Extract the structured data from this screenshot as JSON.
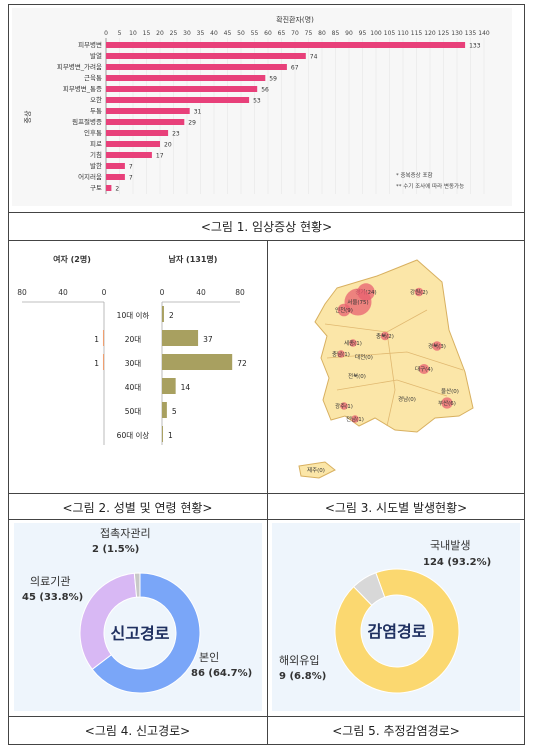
{
  "captions": {
    "fig1": "<그림 1. 임상증상 현황>",
    "fig2": "<그림 2. 성별 및 연령 현황>",
    "fig3": "<그림 3. 시도별 발생현황>",
    "fig4": "<그림 4. 신고경로>",
    "fig5": "<그림 5. 추정감염경로>"
  },
  "chart_data": [
    {
      "type": "bar",
      "orientation": "horizontal",
      "title": "확진환자(명)",
      "ylabel": "증상",
      "categories": [
        "피부병변",
        "발열",
        "피부병변_가려움",
        "근육통",
        "피부병변_통증",
        "오한",
        "두통",
        "림프절병증",
        "인후통",
        "피로",
        "기침",
        "발한",
        "어지러움",
        "구토"
      ],
      "values": [
        133,
        74,
        67,
        59,
        56,
        53,
        31,
        29,
        23,
        20,
        17,
        7,
        7,
        2
      ],
      "xlim": [
        0,
        140
      ],
      "xticks": [
        0,
        5,
        10,
        15,
        20,
        25,
        30,
        35,
        40,
        45,
        50,
        55,
        60,
        65,
        70,
        75,
        80,
        85,
        90,
        95,
        100,
        105,
        110,
        115,
        120,
        125,
        130,
        135,
        140
      ],
      "bar_color": "#e8407a",
      "notes": [
        "* 중복증상 포함",
        "** 수기 조사에 따라 변동가능"
      ]
    },
    {
      "type": "bar",
      "orientation": "horizontal",
      "title": "성별 및 연령 현황",
      "categories": [
        "10대 이하",
        "20대",
        "30대",
        "40대",
        "50대",
        "60대 이상"
      ],
      "series": [
        {
          "name": "여자 (2명)",
          "values": [
            0,
            1,
            1,
            0,
            0,
            0
          ],
          "color": "#f0a070"
        },
        {
          "name": "남자 (131명)",
          "values": [
            2,
            37,
            72,
            14,
            5,
            1
          ],
          "color": "#a8a060"
        }
      ],
      "female_axis_ticks": [
        80,
        40,
        0
      ],
      "male_axis_ticks": [
        0,
        40,
        80
      ],
      "xlim": [
        0,
        80
      ]
    },
    {
      "type": "map",
      "title": "시도별 발생현황",
      "regions": [
        {
          "name": "경기",
          "value": 24
        },
        {
          "name": "강원",
          "value": 2
        },
        {
          "name": "서울",
          "value": 75
        },
        {
          "name": "인천",
          "value": 9
        },
        {
          "name": "충북",
          "value": 2
        },
        {
          "name": "세종",
          "value": 1
        },
        {
          "name": "충남",
          "value": 1
        },
        {
          "name": "대전",
          "value": 0
        },
        {
          "name": "경북",
          "value": 3
        },
        {
          "name": "전북",
          "value": 0
        },
        {
          "name": "대구",
          "value": 4
        },
        {
          "name": "울산",
          "value": 0
        },
        {
          "name": "광주",
          "value": 1
        },
        {
          "name": "경남",
          "value": 0
        },
        {
          "name": "부산",
          "value": 6
        },
        {
          "name": "전남",
          "value": 1
        },
        {
          "name": "제주",
          "value": 0
        }
      ],
      "bubble_color": "#e86070",
      "land_color": "#fbe6a8"
    },
    {
      "type": "pie",
      "donut": true,
      "title": "신고경로",
      "slices": [
        {
          "label": "본인",
          "count": "86",
          "pct": "(64.7%)",
          "value": 86,
          "color": "#7aa6f8"
        },
        {
          "label": "의료기관",
          "count": "45",
          "pct": "(33.8%)",
          "value": 45,
          "color": "#d8b8f4"
        },
        {
          "label": "접촉자관리",
          "count": "2",
          "pct": "(1.5%)",
          "value": 2,
          "color": "#c8c8c8"
        }
      ]
    },
    {
      "type": "pie",
      "donut": true,
      "title": "감염경로",
      "slices": [
        {
          "label": "국내발생",
          "count": "124",
          "pct": "(93.2%)",
          "value": 124,
          "color": "#fbd870"
        },
        {
          "label": "해외유입",
          "count": "9",
          "pct": "(6.8%)",
          "value": 9,
          "color": "#d8d8d8"
        }
      ]
    }
  ]
}
